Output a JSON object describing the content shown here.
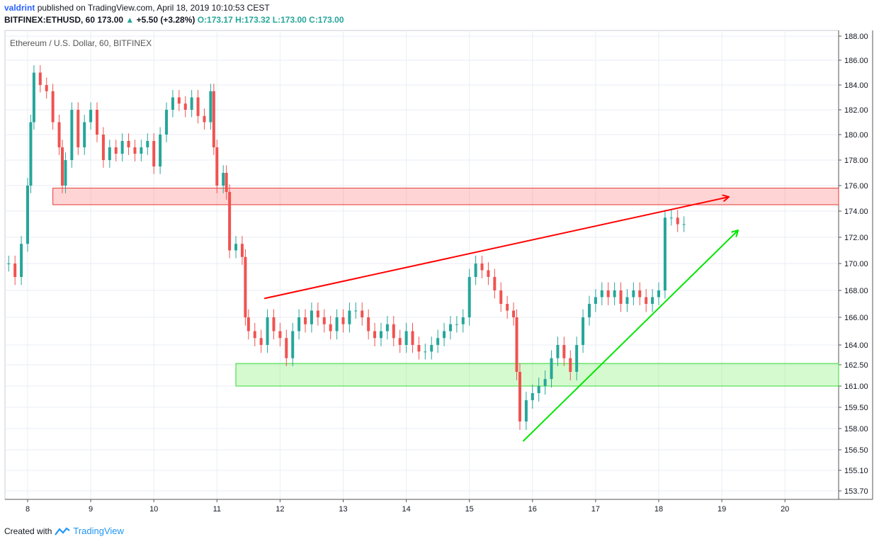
{
  "header": {
    "author": "valdrint",
    "published_text": "published on TradingView.com, April 18, 2019 10:10:53 CEST",
    "symbol_line_prefix": "BITFINEX:ETHUSD, 60  173.00",
    "change": "+5.50 (+3.28%)",
    "ohlc": "O:173.17 H:173.32 L:173.00 C:173.00"
  },
  "footer": {
    "created_with": "Created with",
    "brand": "TradingView"
  },
  "colors": {
    "up": "#26a69a",
    "down": "#ef5350",
    "grid": "#e9eef4",
    "resistance": "#ff0000",
    "support": "#00e600"
  },
  "chart_data": {
    "type": "candlestick",
    "title": "Ethereum / U.S. Dollar, 60, BITFINEX",
    "x_ticks": [
      "8",
      "9",
      "10",
      "11",
      "12",
      "13",
      "14",
      "15",
      "16",
      "17",
      "18",
      "19",
      "20"
    ],
    "y_ticks": [
      "188.00",
      "186.00",
      "184.00",
      "182.00",
      "180.00",
      "178.00",
      "176.00",
      "174.00",
      "172.00",
      "170.00",
      "168.00",
      "166.00",
      "164.00",
      "162.50",
      "161.00",
      "159.50",
      "158.00",
      "156.50",
      "155.10",
      "153.70"
    ],
    "y_ticks_values": [
      188,
      186,
      184,
      182,
      180,
      178,
      176,
      174,
      172,
      170,
      168,
      166,
      164,
      162.5,
      161,
      159.5,
      158,
      156.5,
      155.1,
      153.7
    ],
    "last_price": "173.00",
    "series": [
      {
        "day": 7.7,
        "close": 170
      },
      {
        "day": 7.8,
        "close": 169
      },
      {
        "day": 7.9,
        "close": 171.5
      },
      {
        "day": 8.0,
        "close": 176
      },
      {
        "day": 8.05,
        "close": 181
      },
      {
        "day": 8.1,
        "close": 185
      },
      {
        "day": 8.2,
        "close": 184
      },
      {
        "day": 8.3,
        "close": 183.5
      },
      {
        "day": 8.4,
        "close": 181
      },
      {
        "day": 8.5,
        "close": 179
      },
      {
        "day": 8.55,
        "close": 176
      },
      {
        "day": 8.6,
        "close": 178
      },
      {
        "day": 8.7,
        "close": 182
      },
      {
        "day": 8.8,
        "close": 179
      },
      {
        "day": 8.9,
        "close": 181
      },
      {
        "day": 9.0,
        "close": 182
      },
      {
        "day": 9.1,
        "close": 180
      },
      {
        "day": 9.2,
        "close": 178
      },
      {
        "day": 9.3,
        "close": 179
      },
      {
        "day": 9.4,
        "close": 178.5
      },
      {
        "day": 9.5,
        "close": 179.5
      },
      {
        "day": 9.6,
        "close": 179
      },
      {
        "day": 9.7,
        "close": 178.5
      },
      {
        "day": 9.8,
        "close": 179
      },
      {
        "day": 9.9,
        "close": 179.5
      },
      {
        "day": 10.0,
        "close": 177.5
      },
      {
        "day": 10.1,
        "close": 180
      },
      {
        "day": 10.2,
        "close": 182
      },
      {
        "day": 10.3,
        "close": 183
      },
      {
        "day": 10.4,
        "close": 182.5
      },
      {
        "day": 10.5,
        "close": 182
      },
      {
        "day": 10.6,
        "close": 183
      },
      {
        "day": 10.7,
        "close": 181.5
      },
      {
        "day": 10.8,
        "close": 181
      },
      {
        "day": 10.9,
        "close": 183.5
      },
      {
        "day": 10.95,
        "close": 179
      },
      {
        "day": 11.0,
        "close": 176
      },
      {
        "day": 11.1,
        "close": 177
      },
      {
        "day": 11.15,
        "close": 175.5
      },
      {
        "day": 11.2,
        "close": 171
      },
      {
        "day": 11.3,
        "close": 171.5
      },
      {
        "day": 11.4,
        "close": 170.5
      },
      {
        "day": 11.45,
        "close": 166
      },
      {
        "day": 11.5,
        "close": 165
      },
      {
        "day": 11.6,
        "close": 164.5
      },
      {
        "day": 11.7,
        "close": 164
      },
      {
        "day": 11.8,
        "close": 166
      },
      {
        "day": 11.9,
        "close": 165
      },
      {
        "day": 12.0,
        "close": 164.5
      },
      {
        "day": 12.1,
        "close": 163
      },
      {
        "day": 12.2,
        "close": 165
      },
      {
        "day": 12.3,
        "close": 166
      },
      {
        "day": 12.4,
        "close": 165.5
      },
      {
        "day": 12.5,
        "close": 166.5
      },
      {
        "day": 12.6,
        "close": 166
      },
      {
        "day": 12.7,
        "close": 165.5
      },
      {
        "day": 12.8,
        "close": 165
      },
      {
        "day": 12.9,
        "close": 166
      },
      {
        "day": 13.0,
        "close": 165.5
      },
      {
        "day": 13.1,
        "close": 166.5
      },
      {
        "day": 13.2,
        "close": 166.5
      },
      {
        "day": 13.3,
        "close": 166
      },
      {
        "day": 13.4,
        "close": 165
      },
      {
        "day": 13.5,
        "close": 164.5
      },
      {
        "day": 13.6,
        "close": 165
      },
      {
        "day": 13.7,
        "close": 165.5
      },
      {
        "day": 13.8,
        "close": 164.5
      },
      {
        "day": 13.9,
        "close": 164
      },
      {
        "day": 14.0,
        "close": 165
      },
      {
        "day": 14.1,
        "close": 164
      },
      {
        "day": 14.2,
        "close": 163.5
      },
      {
        "day": 14.3,
        "close": 163.5
      },
      {
        "day": 14.4,
        "close": 164
      },
      {
        "day": 14.5,
        "close": 164.5
      },
      {
        "day": 14.6,
        "close": 165
      },
      {
        "day": 14.7,
        "close": 165.5
      },
      {
        "day": 14.8,
        "close": 165.5
      },
      {
        "day": 14.9,
        "close": 166
      },
      {
        "day": 15.0,
        "close": 169
      },
      {
        "day": 15.1,
        "close": 170
      },
      {
        "day": 15.2,
        "close": 169.5
      },
      {
        "day": 15.3,
        "close": 169
      },
      {
        "day": 15.4,
        "close": 168
      },
      {
        "day": 15.5,
        "close": 167
      },
      {
        "day": 15.6,
        "close": 166.5
      },
      {
        "day": 15.7,
        "close": 166
      },
      {
        "day": 15.75,
        "close": 162
      },
      {
        "day": 15.8,
        "close": 158.5
      },
      {
        "day": 15.9,
        "close": 160
      },
      {
        "day": 16.0,
        "close": 160.5
      },
      {
        "day": 16.1,
        "close": 161
      },
      {
        "day": 16.2,
        "close": 161.5
      },
      {
        "day": 16.3,
        "close": 163
      },
      {
        "day": 16.4,
        "close": 164
      },
      {
        "day": 16.5,
        "close": 163
      },
      {
        "day": 16.6,
        "close": 162
      },
      {
        "day": 16.7,
        "close": 164
      },
      {
        "day": 16.8,
        "close": 166
      },
      {
        "day": 16.9,
        "close": 167
      },
      {
        "day": 17.0,
        "close": 167.5
      },
      {
        "day": 17.1,
        "close": 168
      },
      {
        "day": 17.2,
        "close": 167.5
      },
      {
        "day": 17.3,
        "close": 168
      },
      {
        "day": 17.4,
        "close": 167
      },
      {
        "day": 17.5,
        "close": 167.5
      },
      {
        "day": 17.6,
        "close": 168
      },
      {
        "day": 17.7,
        "close": 167.5
      },
      {
        "day": 17.8,
        "close": 167
      },
      {
        "day": 17.9,
        "close": 167.5
      },
      {
        "day": 18.0,
        "close": 168
      },
      {
        "day": 18.1,
        "close": 173.5
      },
      {
        "day": 18.2,
        "close": 173.5
      },
      {
        "day": 18.3,
        "close": 173
      },
      {
        "day": 18.4,
        "close": 173
      }
    ],
    "zones": [
      {
        "name": "resistance-zone",
        "from_day": 8.4,
        "to_day": 21,
        "y_low": 174.5,
        "y_high": 175.8
      },
      {
        "name": "support-zone",
        "from_day": 11.3,
        "to_day": 21,
        "y_low": 161,
        "y_high": 162.6
      }
    ],
    "trendlines": [
      {
        "name": "upper-trendline",
        "from": {
          "day": 11.75,
          "price": 167.4
        },
        "to": {
          "day": 19.1,
          "price": 175.1
        },
        "arrow": true,
        "color": "#ff0000"
      },
      {
        "name": "lower-trendline",
        "from": {
          "day": 15.85,
          "price": 157.1
        },
        "to": {
          "day": 19.25,
          "price": 172.5
        },
        "arrow": true,
        "color": "#00e600"
      }
    ]
  }
}
